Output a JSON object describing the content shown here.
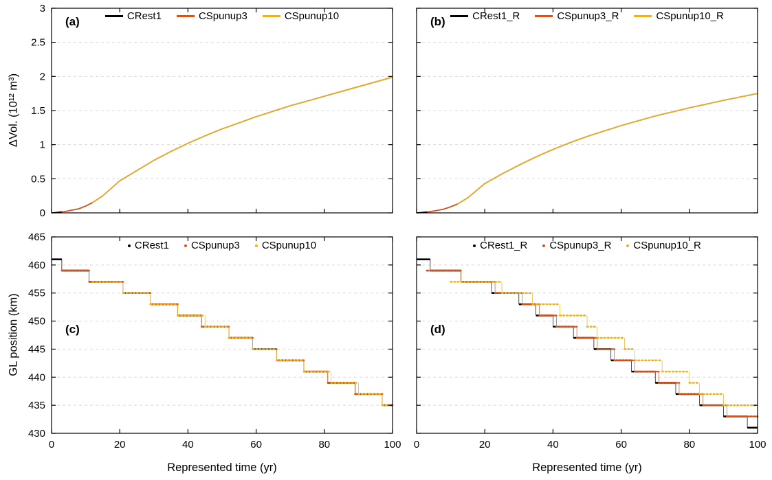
{
  "colors": {
    "grid": "#d9d9d9",
    "axis": "#000000",
    "black": "#000000",
    "orange_red": "#d95319",
    "yellow": "#edb120"
  },
  "chart_data": [
    {
      "panel_label": "(a)",
      "type": "line",
      "xlim": [
        0,
        100
      ],
      "ylim": [
        0,
        3
      ],
      "xticks": [
        0,
        20,
        40,
        60,
        80,
        100
      ],
      "yticks": [
        0,
        0.5,
        1,
        1.5,
        2,
        2.5,
        3
      ],
      "show_xtick_labels": false,
      "show_ytick_labels": true,
      "xlabel": "",
      "ylabel": "ΔVol. (10¹² m³)",
      "grid": "horizontal-dashed",
      "legend_position": "top-center",
      "legend_marker": "line",
      "series": [
        {
          "name": "CRest1",
          "color": "#000000",
          "style": "solid",
          "width": 1.6,
          "x": [
            0,
            2,
            4,
            6,
            8,
            10,
            12,
            15,
            20,
            25,
            30,
            35,
            40,
            45,
            50,
            55,
            60,
            65,
            70,
            75,
            80,
            85,
            90,
            95,
            100
          ],
          "y": [
            0,
            0.01,
            0.02,
            0.04,
            0.06,
            0.1,
            0.15,
            0.25,
            0.47,
            0.62,
            0.77,
            0.9,
            1.02,
            1.13,
            1.23,
            1.32,
            1.41,
            1.49,
            1.57,
            1.64,
            1.71,
            1.78,
            1.85,
            1.92,
            1.99
          ]
        },
        {
          "name": "CSpunup3",
          "color": "#d95319",
          "style": "solid",
          "width": 1.6,
          "x": [
            3,
            4,
            6,
            8,
            10,
            12,
            15,
            20,
            25,
            30,
            35,
            40,
            45,
            50,
            55,
            60,
            65,
            70,
            75,
            80,
            85,
            90,
            95,
            100
          ],
          "y": [
            0.015,
            0.02,
            0.04,
            0.06,
            0.1,
            0.15,
            0.25,
            0.47,
            0.62,
            0.77,
            0.9,
            1.02,
            1.13,
            1.23,
            1.32,
            1.41,
            1.49,
            1.57,
            1.64,
            1.71,
            1.78,
            1.85,
            1.92,
            1.99
          ]
        },
        {
          "name": "CSpunup10",
          "color": "#edb120",
          "style": "solid",
          "width": 1.6,
          "x": [
            12,
            15,
            20,
            25,
            30,
            35,
            40,
            45,
            50,
            55,
            60,
            65,
            70,
            75,
            80,
            85,
            90,
            95,
            100
          ],
          "y": [
            0.15,
            0.25,
            0.47,
            0.62,
            0.77,
            0.9,
            1.02,
            1.13,
            1.23,
            1.32,
            1.41,
            1.49,
            1.57,
            1.64,
            1.71,
            1.78,
            1.85,
            1.92,
            1.99
          ]
        }
      ]
    },
    {
      "panel_label": "(b)",
      "type": "line",
      "xlim": [
        0,
        100
      ],
      "ylim": [
        0,
        3
      ],
      "xticks": [
        0,
        20,
        40,
        60,
        80,
        100
      ],
      "yticks": [
        0,
        0.5,
        1,
        1.5,
        2,
        2.5,
        3
      ],
      "show_xtick_labels": false,
      "show_ytick_labels": false,
      "xlabel": "",
      "ylabel": "",
      "grid": "horizontal-dashed",
      "legend_position": "top-center",
      "legend_marker": "line",
      "series": [
        {
          "name": "CRest1_R",
          "color": "#000000",
          "style": "solid",
          "width": 1.6,
          "x": [
            0,
            2,
            4,
            6,
            8,
            10,
            12,
            15,
            20,
            25,
            30,
            35,
            40,
            45,
            50,
            55,
            60,
            65,
            70,
            75,
            80,
            85,
            90,
            95,
            100
          ],
          "y": [
            0,
            0.008,
            0.018,
            0.035,
            0.055,
            0.09,
            0.13,
            0.22,
            0.43,
            0.57,
            0.7,
            0.82,
            0.93,
            1.03,
            1.12,
            1.2,
            1.28,
            1.35,
            1.42,
            1.48,
            1.54,
            1.595,
            1.65,
            1.7,
            1.75
          ]
        },
        {
          "name": "CSpunup3_R",
          "color": "#d95319",
          "style": "solid",
          "width": 1.6,
          "x": [
            3,
            4,
            6,
            8,
            10,
            12,
            15,
            20,
            25,
            30,
            35,
            40,
            45,
            50,
            55,
            60,
            65,
            70,
            75,
            80,
            85,
            90,
            95,
            100
          ],
          "y": [
            0.013,
            0.018,
            0.035,
            0.055,
            0.09,
            0.13,
            0.22,
            0.43,
            0.57,
            0.7,
            0.82,
            0.93,
            1.03,
            1.12,
            1.2,
            1.28,
            1.35,
            1.42,
            1.48,
            1.54,
            1.595,
            1.65,
            1.7,
            1.75
          ]
        },
        {
          "name": "CSpunup10_R",
          "color": "#edb120",
          "style": "solid",
          "width": 1.6,
          "x": [
            12,
            15,
            20,
            25,
            30,
            35,
            40,
            45,
            50,
            55,
            60,
            65,
            70,
            75,
            80,
            85,
            90,
            95,
            100
          ],
          "y": [
            0.13,
            0.22,
            0.43,
            0.57,
            0.7,
            0.82,
            0.93,
            1.03,
            1.12,
            1.2,
            1.28,
            1.35,
            1.42,
            1.48,
            1.54,
            1.595,
            1.65,
            1.7,
            1.75
          ]
        }
      ]
    },
    {
      "panel_label": "(c)",
      "type": "step",
      "xlim": [
        0,
        100
      ],
      "ylim": [
        430,
        465
      ],
      "xticks": [
        0,
        20,
        40,
        60,
        80,
        100
      ],
      "yticks": [
        430,
        435,
        440,
        445,
        450,
        455,
        460,
        465
      ],
      "show_xtick_labels": true,
      "show_ytick_labels": true,
      "xlabel": "Represented time (yr)",
      "ylabel": "GL position (km)",
      "grid": "horizontal-dashed",
      "legend_position": "top-center",
      "legend_marker": "dot",
      "series": [
        {
          "name": "CRest1",
          "color": "#000000",
          "style": "solid",
          "width": 2.6,
          "x": [
            0,
            3,
            11,
            21,
            29,
            37,
            44,
            52,
            59,
            66,
            74,
            81,
            89,
            97
          ],
          "y": [
            461,
            459,
            457,
            455,
            453,
            451,
            449,
            447,
            445,
            443,
            441,
            439,
            437,
            435
          ]
        },
        {
          "name": "CSpunup3",
          "color": "#d95319",
          "style": "dense-dotted",
          "width": 2.6,
          "x": [
            3,
            11,
            21,
            29,
            37,
            44,
            52,
            59,
            66,
            74,
            81,
            89,
            97
          ],
          "y": [
            459,
            457,
            455,
            453,
            451,
            449,
            447,
            445,
            443,
            441,
            439,
            437,
            435
          ]
        },
        {
          "name": "CSpunup10",
          "color": "#edb120",
          "style": "dotted",
          "width": 2.6,
          "x": [
            12,
            21,
            29,
            37,
            45,
            52,
            59,
            66,
            74,
            82,
            90,
            97
          ],
          "y": [
            457,
            455,
            453,
            451,
            449,
            447,
            445,
            443,
            441,
            439,
            437,
            435
          ]
        }
      ]
    },
    {
      "panel_label": "(d)",
      "type": "step",
      "xlim": [
        0,
        100
      ],
      "ylim": [
        430,
        465
      ],
      "xticks": [
        0,
        20,
        40,
        60,
        80,
        100
      ],
      "yticks": [
        430,
        435,
        440,
        445,
        450,
        455,
        460,
        465
      ],
      "show_xtick_labels": true,
      "show_ytick_labels": false,
      "xlabel": "Represented time (yr)",
      "ylabel": "",
      "grid": "horizontal-dashed",
      "legend_position": "top-center",
      "legend_marker": "dot",
      "series": [
        {
          "name": "CRest1_R",
          "color": "#000000",
          "style": "solid",
          "width": 2.6,
          "x": [
            0,
            4,
            13,
            22,
            30,
            35,
            40,
            46,
            52,
            57,
            63,
            70,
            76,
            83,
            90,
            97
          ],
          "y": [
            461,
            459,
            457,
            455,
            453,
            451,
            449,
            447,
            445,
            443,
            441,
            439,
            437,
            435,
            433,
            431
          ]
        },
        {
          "name": "CSpunup3_R",
          "color": "#d95319",
          "style": "dense-dotted",
          "width": 2.6,
          "x": [
            3,
            13,
            23,
            31,
            36,
            41,
            47,
            53,
            58,
            64,
            71,
            77,
            84,
            91
          ],
          "y": [
            459,
            457,
            455,
            453,
            451,
            449,
            447,
            445,
            443,
            441,
            439,
            437,
            435,
            433
          ]
        },
        {
          "name": "CSpunup10_R",
          "color": "#edb120",
          "style": "dotted",
          "width": 2.6,
          "x": [
            10,
            25,
            34,
            42,
            50,
            53,
            61,
            64,
            72,
            80,
            83,
            90
          ],
          "y": [
            457,
            455,
            453,
            451,
            449,
            447,
            445,
            443,
            441,
            439,
            437,
            435
          ]
        }
      ]
    }
  ]
}
